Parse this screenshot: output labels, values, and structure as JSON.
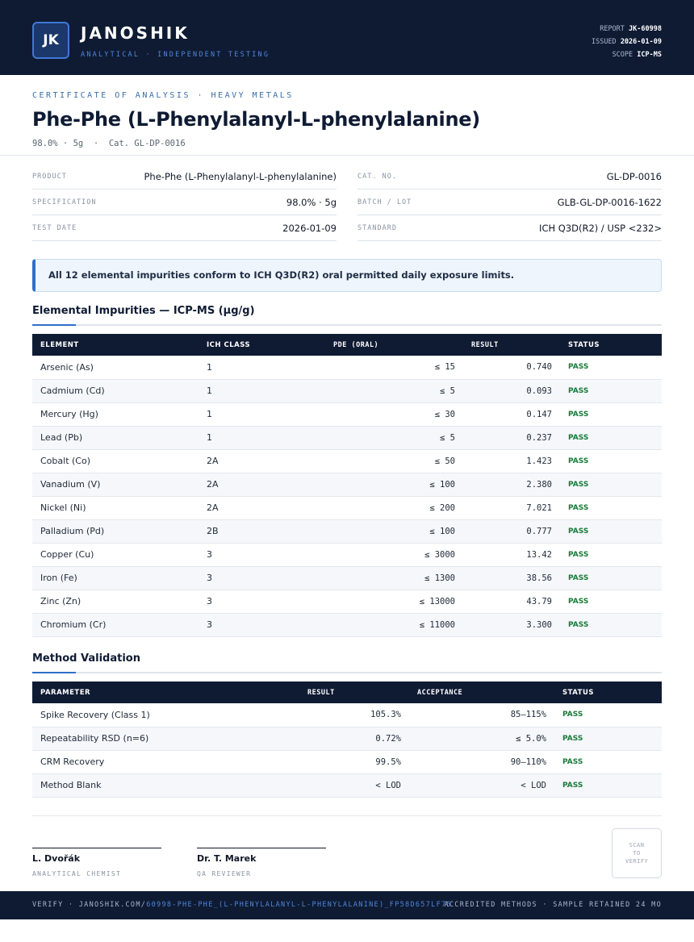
{
  "header": {
    "logo": "JK",
    "brand": "JANOSHIK",
    "tagline": "ANALYTICAL · INDEPENDENT TESTING",
    "meta": [
      {
        "label": "REPORT",
        "value": "JK-60998"
      },
      {
        "label": "ISSUED",
        "value": "2026-01-09"
      },
      {
        "label": "SCOPE",
        "value": "ICP-MS"
      }
    ]
  },
  "title_block": {
    "eyebrow": "CERTIFICATE OF ANALYSIS · HEAVY METALS",
    "title": "Phe-Phe (L-Phenylalanyl-L-phenylalanine)",
    "subtitle": "98.0% · 5g  ·  Cat. GL-DP-0016"
  },
  "info": {
    "left": [
      {
        "label": "PRODUCT",
        "value": "Phe-Phe (L-Phenylalanyl-L-phenylalanine)"
      },
      {
        "label": "SPECIFICATION",
        "value": "98.0% · 5g"
      },
      {
        "label": "TEST DATE",
        "value": "2026-01-09"
      }
    ],
    "right": [
      {
        "label": "CAT. NO.",
        "value": "GL-DP-0016"
      },
      {
        "label": "BATCH / LOT",
        "value": "GLB-GL-DP-0016-1622"
      },
      {
        "label": "STANDARD",
        "value": "ICH Q3D(R2) / USP <232>"
      }
    ]
  },
  "notice": "All 12 elemental impurities conform to ICH Q3D(R2) oral permitted daily exposure limits.",
  "impurities": {
    "heading": "Elemental Impurities — ICP-MS (µg/g)",
    "columns": [
      "ELEMENT",
      "ICH CLASS",
      "PDE (ORAL)",
      "RESULT",
      "STATUS"
    ],
    "rows": [
      [
        "Arsenic (As)",
        "1",
        "≤ 15",
        "0.740",
        "PASS"
      ],
      [
        "Cadmium (Cd)",
        "1",
        "≤ 5",
        "0.093",
        "PASS"
      ],
      [
        "Mercury (Hg)",
        "1",
        "≤ 30",
        "0.147",
        "PASS"
      ],
      [
        "Lead (Pb)",
        "1",
        "≤ 5",
        "0.237",
        "PASS"
      ],
      [
        "Cobalt (Co)",
        "2A",
        "≤ 50",
        "1.423",
        "PASS"
      ],
      [
        "Vanadium (V)",
        "2A",
        "≤ 100",
        "2.380",
        "PASS"
      ],
      [
        "Nickel (Ni)",
        "2A",
        "≤ 200",
        "7.021",
        "PASS"
      ],
      [
        "Palladium (Pd)",
        "2B",
        "≤ 100",
        "0.777",
        "PASS"
      ],
      [
        "Copper (Cu)",
        "3",
        "≤ 3000",
        "13.42",
        "PASS"
      ],
      [
        "Iron (Fe)",
        "3",
        "≤ 1300",
        "38.56",
        "PASS"
      ],
      [
        "Zinc (Zn)",
        "3",
        "≤ 13000",
        "43.79",
        "PASS"
      ],
      [
        "Chromium (Cr)",
        "3",
        "≤ 11000",
        "3.300",
        "PASS"
      ]
    ]
  },
  "validation": {
    "heading": "Method Validation",
    "columns": [
      "PARAMETER",
      "RESULT",
      "ACCEPTANCE",
      "STATUS"
    ],
    "rows": [
      [
        "Spike Recovery (Class 1)",
        "105.3%",
        "85–115%",
        "PASS"
      ],
      [
        "Repeatability RSD (n=6)",
        "0.72%",
        "≤ 5.0%",
        "PASS"
      ],
      [
        "CRM Recovery",
        "99.5%",
        "90–110%",
        "PASS"
      ],
      [
        "Method Blank",
        "< LOD",
        "< LOD",
        "PASS"
      ]
    ]
  },
  "signatures": [
    {
      "name": "L. Dvořák",
      "role": "ANALYTICAL CHEMIST"
    },
    {
      "name": "Dr. T. Marek",
      "role": "QA REVIEWER"
    }
  ],
  "stamp": "SCAN TO VERIFY",
  "footer": {
    "verify": "VERIFY · JANOSHIK.COM/",
    "link": "60998-PHE-PHE_(L-PHENYLALANYL-L-PHENYLALANINE)_FP58D657LF75",
    "right": "ACCREDITED METHODS · SAMPLE RETAINED 24 MO"
  }
}
